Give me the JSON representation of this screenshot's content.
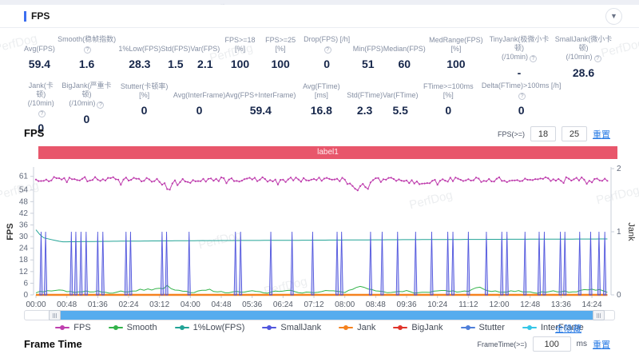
{
  "watermark": "PerfDog",
  "panel": {
    "title": "FPS"
  },
  "stats": {
    "row1": [
      {
        "key": "avg-fps",
        "label": [
          "Avg(FPS)"
        ],
        "value": "59.4",
        "help": false
      },
      {
        "key": "smooth",
        "label": [
          "Smooth(稳帧指数)"
        ],
        "value": "1.6",
        "help": true
      },
      {
        "key": "1pct-low-fps",
        "label": [
          "1%Low(FPS)"
        ],
        "value": "28.3",
        "help": false
      },
      {
        "key": "std-fps",
        "label": [
          "Std(FPS)"
        ],
        "value": "1.5",
        "help": false
      },
      {
        "key": "var-fps",
        "label": [
          "Var(FPS)"
        ],
        "value": "2.1",
        "help": false
      },
      {
        "key": "fps-ge-18",
        "label": [
          "FPS>=18 [%]"
        ],
        "value": "100",
        "help": false
      },
      {
        "key": "fps-ge-25",
        "label": [
          "FPS>=25 [%]"
        ],
        "value": "100",
        "help": false
      },
      {
        "key": "drop-fps",
        "label": [
          "Drop(FPS) [/h]"
        ],
        "value": "0",
        "help": true
      },
      {
        "key": "min-fps",
        "label": [
          "Min(FPS)"
        ],
        "value": "51",
        "help": false
      },
      {
        "key": "median-fps",
        "label": [
          "Median(FPS)"
        ],
        "value": "60",
        "help": false
      },
      {
        "key": "medrange-fps",
        "label": [
          "MedRange(FPS)[%]"
        ],
        "value": "100",
        "help": false
      },
      {
        "key": "tinyjank",
        "label": [
          "TinyJank(极微小卡顿)",
          "(/10min)"
        ],
        "value": "-",
        "help": true
      },
      {
        "key": "smalljank",
        "label": [
          "SmallJank(微小卡顿)",
          "(/10min)"
        ],
        "value": "28.6",
        "help": true
      }
    ],
    "row2": [
      {
        "key": "jank",
        "label": [
          "Jank(卡顿)",
          "(/10min)"
        ],
        "value": "0",
        "help": true
      },
      {
        "key": "bigjank",
        "label": [
          "BigJank(严重卡顿)",
          "(/10min)"
        ],
        "value": "0",
        "help": true
      },
      {
        "key": "stutter",
        "label": [
          "Stutter(卡顿率) [%]"
        ],
        "value": "0",
        "help": false
      },
      {
        "key": "avg-interframe",
        "label": [
          "Avg(InterFrame)"
        ],
        "value": "0",
        "help": false
      },
      {
        "key": "avg-fps-interframe",
        "label": [
          "Avg(FPS+InterFrame)"
        ],
        "value": "59.4",
        "help": false
      },
      {
        "key": "avg-ftime",
        "label": [
          "Avg(FTime) [ms]"
        ],
        "value": "16.8",
        "help": false
      },
      {
        "key": "std-ftime",
        "label": [
          "Std(FTime)"
        ],
        "value": "2.3",
        "help": false
      },
      {
        "key": "var-ftime",
        "label": [
          "Var(FTime)"
        ],
        "value": "5.5",
        "help": false
      },
      {
        "key": "ftime-ge-100ms",
        "label": [
          "FTime>=100ms [%]"
        ],
        "value": "0",
        "help": false
      },
      {
        "key": "delta-ftime",
        "label": [
          "Delta(FTime)>100ms [/h]"
        ],
        "value": "0",
        "help": true
      }
    ]
  },
  "fps_section": {
    "title": "FPS",
    "filter_label": "FPS(>=)",
    "inputs": [
      "18",
      "25"
    ],
    "reset_label": "重置"
  },
  "legend_hide_all": "全隐藏",
  "frame_time_section": {
    "title": "Frame Time",
    "filter_label": "FrameTime(>=)",
    "input": "100",
    "unit": "ms",
    "reset_label": "重置"
  },
  "chart_data": {
    "type": "line",
    "title": "FPS",
    "label_band": {
      "text": "label1",
      "color": "#e8566b"
    },
    "x_axis": {
      "tick_interval_s": 48,
      "range_s": [
        0,
        890
      ],
      "ticks": [
        "00:00",
        "00:48",
        "01:36",
        "02:24",
        "03:12",
        "04:00",
        "04:48",
        "05:36",
        "06:24",
        "07:12",
        "08:00",
        "08:48",
        "09:36",
        "10:24",
        "11:12",
        "12:00",
        "12:48",
        "13:36",
        "14:24"
      ]
    },
    "y_axis_left": {
      "label": "FPS",
      "ticks": [
        61,
        54,
        48,
        42,
        36,
        30,
        24,
        18,
        12,
        6,
        0
      ],
      "range": [
        0,
        65
      ]
    },
    "y_axis_right": {
      "label": "Jank",
      "ticks": [
        2,
        1,
        0
      ],
      "range": [
        0,
        2
      ]
    },
    "legend": [
      "FPS",
      "Smooth",
      "1%Low(FPS)",
      "SmallJank",
      "Jank",
      "BigJank",
      "Stutter",
      "InterFrame"
    ],
    "series": [
      {
        "name": "InterFrame",
        "color": "#36c6e7",
        "axis": "left",
        "style": "line",
        "width": 1,
        "keyframes": [
          [
            0,
            0
          ],
          [
            890,
            0
          ]
        ]
      },
      {
        "name": "Stutter",
        "color": "#4f7fd9",
        "axis": "left",
        "style": "line",
        "width": 1,
        "keyframes": [
          [
            0,
            0
          ],
          [
            890,
            0
          ]
        ]
      },
      {
        "name": "BigJank",
        "color": "#e0342b",
        "axis": "left",
        "style": "line",
        "width": 1,
        "keyframes": [
          [
            0,
            0
          ],
          [
            890,
            0
          ]
        ]
      },
      {
        "name": "Jank",
        "color": "#f5821f",
        "axis": "left",
        "style": "line",
        "width": 2.4,
        "keyframes": [
          [
            0,
            0
          ],
          [
            890,
            0
          ]
        ]
      },
      {
        "name": "Smooth",
        "color": "#33b34a",
        "axis": "left",
        "style": "line",
        "width": 1,
        "noise": 0.5,
        "keyframes": [
          [
            0,
            1
          ],
          [
            30,
            2.5
          ],
          [
            60,
            1
          ],
          [
            90,
            2
          ],
          [
            120,
            1
          ],
          [
            150,
            2.2
          ],
          [
            195,
            3
          ],
          [
            204,
            4.5
          ],
          [
            215,
            2
          ],
          [
            240,
            1.5
          ],
          [
            270,
            2.5
          ],
          [
            300,
            1
          ],
          [
            330,
            2
          ],
          [
            360,
            1.2
          ],
          [
            390,
            2.3
          ],
          [
            420,
            1
          ],
          [
            450,
            2
          ],
          [
            480,
            1.5
          ],
          [
            505,
            4.3
          ],
          [
            520,
            3.2
          ],
          [
            540,
            1.5
          ],
          [
            570,
            2
          ],
          [
            600,
            1
          ],
          [
            630,
            2.5
          ],
          [
            660,
            1.2
          ],
          [
            690,
            3.8
          ],
          [
            700,
            2
          ],
          [
            720,
            1.5
          ],
          [
            750,
            2.2
          ],
          [
            780,
            1
          ],
          [
            810,
            2
          ],
          [
            840,
            1.5
          ],
          [
            865,
            3
          ],
          [
            890,
            1.5
          ]
        ]
      },
      {
        "name": "1%Low(FPS)",
        "color": "#22a396",
        "axis": "left",
        "style": "line",
        "width": 1,
        "keyframes": [
          [
            0,
            33.5
          ],
          [
            10,
            29.5
          ],
          [
            40,
            27.3
          ],
          [
            120,
            27.6
          ],
          [
            240,
            27.9
          ],
          [
            400,
            28.1
          ],
          [
            560,
            28.4
          ],
          [
            720,
            28.6
          ],
          [
            890,
            28.8
          ]
        ]
      },
      {
        "name": "SmallJank",
        "color": "#5156dd",
        "axis": "right",
        "style": "spikes",
        "spike_value": 1,
        "fill": "rgba(81,86,221,0.30)",
        "spike_times_s": [
          8,
          15,
          55,
          62,
          70,
          78,
          96,
          104,
          140,
          147,
          196,
          203,
          238,
          310,
          318,
          365,
          398,
          430,
          468,
          475,
          520,
          538,
          562,
          590,
          615,
          640,
          648,
          672,
          700,
          724,
          732,
          760,
          782,
          790,
          815,
          822,
          845,
          862,
          875,
          884
        ]
      },
      {
        "name": "FPS",
        "color": "#bf3fae",
        "axis": "left",
        "style": "noisy-line",
        "width": 1,
        "noise": 1.2,
        "markers": true,
        "keyframes": [
          [
            0,
            59.6
          ],
          [
            190,
            59.4
          ],
          [
            200,
            56.5
          ],
          [
            207,
            54.2
          ],
          [
            213,
            58.5
          ],
          [
            300,
            59.5
          ],
          [
            480,
            59.3
          ],
          [
            492,
            56
          ],
          [
            500,
            53
          ],
          [
            508,
            57.5
          ],
          [
            516,
            55
          ],
          [
            524,
            58.8
          ],
          [
            560,
            59.4
          ],
          [
            610,
            57.5
          ],
          [
            620,
            59.3
          ],
          [
            890,
            59.4
          ]
        ]
      }
    ]
  }
}
